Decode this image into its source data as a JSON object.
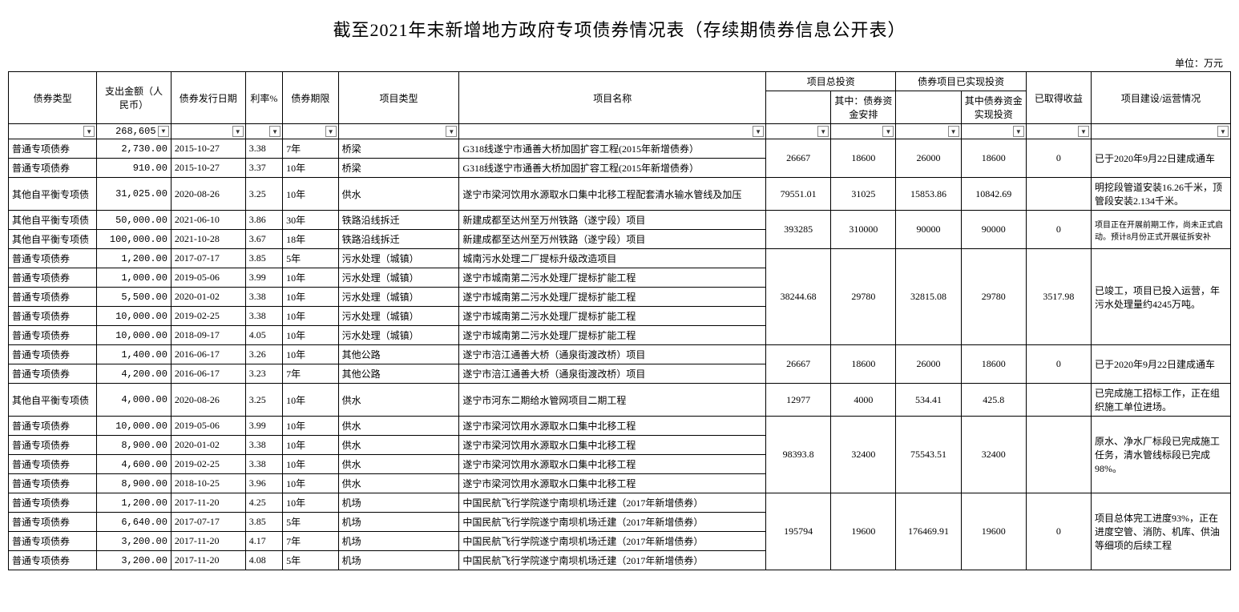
{
  "title": "截至2021年末新增地方政府专项债券情况表（存续期债券信息公开表）",
  "unit": "单位：万元",
  "headers": {
    "bond_type": "债券类型",
    "amount": "支出金额（人民币）",
    "issue_date": "债券发行日期",
    "rate": "利率%",
    "term": "债券期限",
    "proj_type": "项目类型",
    "proj_name": "项目名称",
    "total_inv_group": "项目总投资",
    "total_inv_sub": "其中：债券资金安排",
    "real_inv_group": "债券项目已实现投资",
    "real_inv_sub": "其中债券资金实现投资",
    "income": "已取得收益",
    "status": "项目建设/运营情况"
  },
  "filter_total": "268,605.(",
  "groups": [
    {
      "rows": [
        {
          "type": "普通专项债券",
          "amount": "2,730.00",
          "date": "2015-10-27",
          "rate": "3.38",
          "term": "7年",
          "ptype": "桥梁",
          "pname": "G318线遂宁市通善大桥加固扩容工程(2015年新增债券）"
        },
        {
          "type": "普通专项债券",
          "amount": "910.00",
          "date": "2015-10-27",
          "rate": "3.37",
          "term": "10年",
          "ptype": "桥梁",
          "pname": "G318线遂宁市通善大桥加固扩容工程(2015年新增债券）"
        }
      ],
      "inv": [
        "26667",
        "18600",
        "26000",
        "18600",
        "0"
      ],
      "status": "已于2020年9月22日建成通车"
    },
    {
      "rows": [
        {
          "type": "其他自平衡专项债",
          "amount": "31,025.00",
          "date": "2020-08-26",
          "rate": "3.25",
          "term": "10年",
          "ptype": "供水",
          "pname": "遂宁市梁河饮用水源取水口集中北移工程配套清水输水管线及加压"
        }
      ],
      "inv": [
        "79551.01",
        "31025",
        "15853.86",
        "10842.69",
        ""
      ],
      "status": "明挖段管道安装16.26千米，顶管段安装2.134千米。"
    },
    {
      "rows": [
        {
          "type": "其他自平衡专项债",
          "amount": "50,000.00",
          "date": "2021-06-10",
          "rate": "3.86",
          "term": "30年",
          "ptype": "铁路沿线拆迁",
          "pname": "新建成都至达州至万州铁路（遂宁段）项目"
        },
        {
          "type": "其他自平衡专项债",
          "amount": "100,000.00",
          "date": "2021-10-28",
          "rate": "3.67",
          "term": "18年",
          "ptype": "铁路沿线拆迁",
          "pname": "新建成都至达州至万州铁路（遂宁段）项目"
        }
      ],
      "inv": [
        "393285",
        "310000",
        "90000",
        "90000",
        "0"
      ],
      "status": "项目正在开展前期工作，尚未正式启动。预计8月份正式开展征拆安补",
      "status_small": true
    },
    {
      "rows": [
        {
          "type": "普通专项债券",
          "amount": "1,200.00",
          "date": "2017-07-17",
          "rate": "3.85",
          "term": "5年",
          "ptype": "污水处理（城镇）",
          "pname": "城南污水处理二厂提标升级改造项目"
        },
        {
          "type": "普通专项债券",
          "amount": "1,000.00",
          "date": "2019-05-06",
          "rate": "3.99",
          "term": "10年",
          "ptype": "污水处理（城镇）",
          "pname": "遂宁市城南第二污水处理厂提标扩能工程"
        },
        {
          "type": "普通专项债券",
          "amount": "5,500.00",
          "date": "2020-01-02",
          "rate": "3.38",
          "term": "10年",
          "ptype": "污水处理（城镇）",
          "pname": "遂宁市城南第二污水处理厂提标扩能工程"
        },
        {
          "type": "普通专项债券",
          "amount": "10,000.00",
          "date": "2019-02-25",
          "rate": "3.38",
          "term": "10年",
          "ptype": "污水处理（城镇）",
          "pname": "遂宁市城南第二污水处理厂提标扩能工程"
        },
        {
          "type": "普通专项债券",
          "amount": "10,000.00",
          "date": "2018-09-17",
          "rate": "4.05",
          "term": "10年",
          "ptype": "污水处理（城镇）",
          "pname": "遂宁市城南第二污水处理厂提标扩能工程"
        }
      ],
      "inv": [
        "38244.68",
        "29780",
        "32815.08",
        "29780",
        "3517.98"
      ],
      "status": "已竣工，项目已投入运营，年污水处理量约4245万吨。"
    },
    {
      "rows": [
        {
          "type": "普通专项债券",
          "amount": "1,400.00",
          "date": "2016-06-17",
          "rate": "3.26",
          "term": "10年",
          "ptype": "其他公路",
          "pname": "遂宁市涪江通善大桥（通泉街渡改桥）项目"
        },
        {
          "type": "普通专项债券",
          "amount": "4,200.00",
          "date": "2016-06-17",
          "rate": "3.23",
          "term": "7年",
          "ptype": "其他公路",
          "pname": "遂宁市涪江通善大桥（通泉街渡改桥）项目"
        }
      ],
      "inv": [
        "26667",
        "18600",
        "26000",
        "18600",
        "0"
      ],
      "status": "已于2020年9月22日建成通车"
    },
    {
      "rows": [
        {
          "type": "其他自平衡专项债",
          "amount": "4,000.00",
          "date": "2020-08-26",
          "rate": "3.25",
          "term": "10年",
          "ptype": "供水",
          "pname": "遂宁市河东二期给水管网项目二期工程"
        }
      ],
      "inv": [
        "12977",
        "4000",
        "534.41",
        "425.8",
        ""
      ],
      "status": "已完成施工招标工作，正在组织施工单位进场。"
    },
    {
      "rows": [
        {
          "type": "普通专项债券",
          "amount": "10,000.00",
          "date": "2019-05-06",
          "rate": "3.99",
          "term": "10年",
          "ptype": "供水",
          "pname": "遂宁市梁河饮用水源取水口集中北移工程"
        },
        {
          "type": "普通专项债券",
          "amount": "8,900.00",
          "date": "2020-01-02",
          "rate": "3.38",
          "term": "10年",
          "ptype": "供水",
          "pname": "遂宁市梁河饮用水源取水口集中北移工程"
        },
        {
          "type": "普通专项债券",
          "amount": "4,600.00",
          "date": "2019-02-25",
          "rate": "3.38",
          "term": "10年",
          "ptype": "供水",
          "pname": "遂宁市梁河饮用水源取水口集中北移工程"
        },
        {
          "type": "普通专项债券",
          "amount": "8,900.00",
          "date": "2018-10-25",
          "rate": "3.96",
          "term": "10年",
          "ptype": "供水",
          "pname": "遂宁市梁河饮用水源取水口集中北移工程"
        }
      ],
      "inv": [
        "98393.8",
        "32400",
        "75543.51",
        "32400",
        ""
      ],
      "status": "原水、净水厂标段已完成施工任务，清水管线标段已完成98%。"
    },
    {
      "rows": [
        {
          "type": "普通专项债券",
          "amount": "1,200.00",
          "date": "2017-11-20",
          "rate": "4.25",
          "term": "10年",
          "ptype": "机场",
          "pname": "中国民航飞行学院遂宁南坝机场迁建（2017年新增债券）"
        },
        {
          "type": "普通专项债券",
          "amount": "6,640.00",
          "date": "2017-07-17",
          "rate": "3.85",
          "term": "5年",
          "ptype": "机场",
          "pname": "中国民航飞行学院遂宁南坝机场迁建（2017年新增债券）"
        },
        {
          "type": "普通专项债券",
          "amount": "3,200.00",
          "date": "2017-11-20",
          "rate": "4.17",
          "term": "7年",
          "ptype": "机场",
          "pname": "中国民航飞行学院遂宁南坝机场迁建（2017年新增债券）"
        },
        {
          "type": "普通专项债券",
          "amount": "3,200.00",
          "date": "2017-11-20",
          "rate": "4.08",
          "term": "5年",
          "ptype": "机场",
          "pname": "中国民航飞行学院遂宁南坝机场迁建（2017年新增债券）"
        }
      ],
      "inv": [
        "195794",
        "19600",
        "176469.91",
        "19600",
        "0"
      ],
      "status": "项目总体完工进度93%，正在进度空管、消防、机库、供油等细项的后续工程"
    }
  ]
}
